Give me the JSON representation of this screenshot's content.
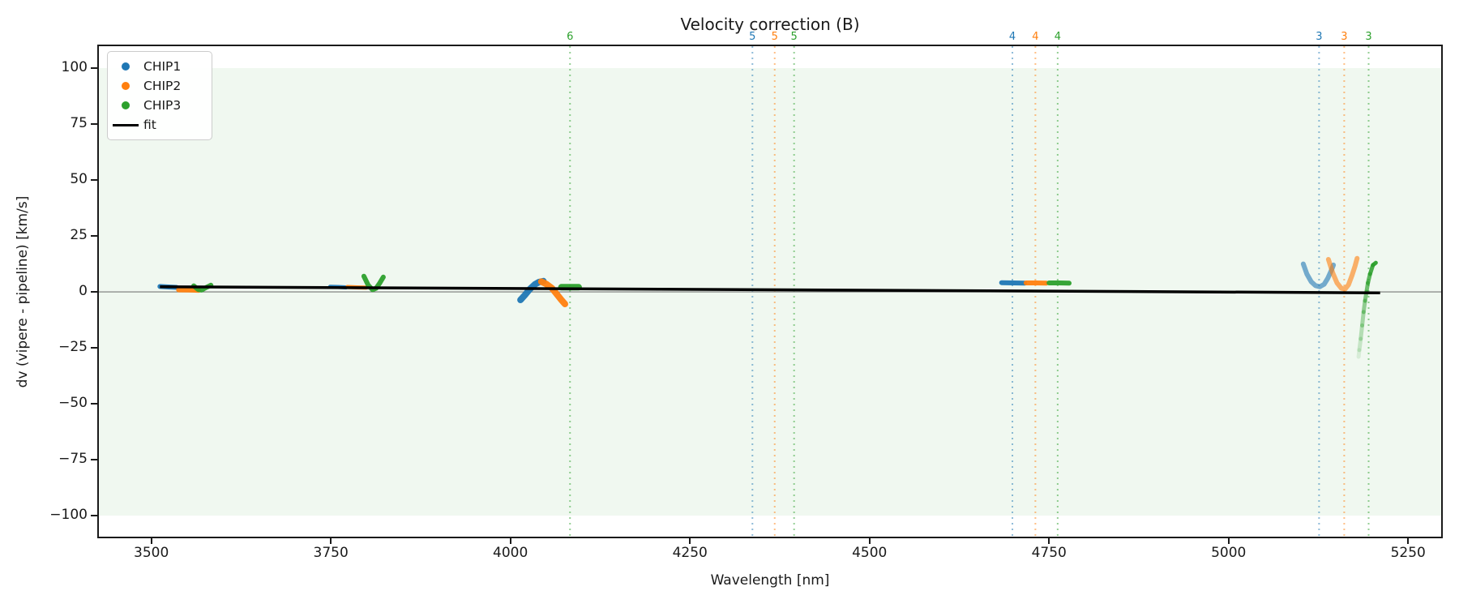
{
  "title": "Velocity correction (B)",
  "colors": {
    "chip1": "#1f77b4",
    "chip2": "#ff7f0e",
    "chip3": "#2ca02c",
    "fit": "#000000",
    "band": "rgba(44,160,44,0.07)",
    "zero_line": "#777777",
    "spine": "#1a1a1a"
  },
  "legend": {
    "items": [
      {
        "label": "CHIP1",
        "marker": "dot",
        "color": "#1f77b4"
      },
      {
        "label": "CHIP2",
        "marker": "dot",
        "color": "#ff7f0e"
      },
      {
        "label": "CHIP3",
        "marker": "dot",
        "color": "#2ca02c"
      },
      {
        "label": "fit",
        "marker": "line",
        "color": "#000000"
      }
    ]
  },
  "chart_data": {
    "type": "line",
    "title": "Velocity correction (B)",
    "xlabel": "Wavelength [nm]",
    "ylabel": "dv (vipere - pipeline) [km/s]",
    "xlim": [
      3427,
      5296
    ],
    "ylim": [
      -109.4,
      109.8
    ],
    "xticks": [
      {
        "v": 3500,
        "label": "3500"
      },
      {
        "v": 3750,
        "label": "3750"
      },
      {
        "v": 4000,
        "label": "4000"
      },
      {
        "v": 4250,
        "label": "4250"
      },
      {
        "v": 4500,
        "label": "4500"
      },
      {
        "v": 4750,
        "label": "4750"
      },
      {
        "v": 5000,
        "label": "5000"
      },
      {
        "v": 5250,
        "label": "5250"
      }
    ],
    "yticks": [
      {
        "v": 100,
        "label": "100"
      },
      {
        "v": 75,
        "label": "75"
      },
      {
        "v": 50,
        "label": "50"
      },
      {
        "v": 25,
        "label": "25"
      },
      {
        "v": 0,
        "label": "0"
      },
      {
        "v": -25,
        "label": "−25"
      },
      {
        "v": -50,
        "label": "−50"
      },
      {
        "v": -75,
        "label": "−75"
      },
      {
        "v": -100,
        "label": "−100"
      }
    ],
    "grid": false,
    "legend_position": "upper left",
    "band": {
      "ymin": -100,
      "ymax": 100,
      "color": "rgba(44,160,44,0.07)"
    },
    "zero_line": {
      "y": 0,
      "color": "#777777",
      "lw": 1.2
    },
    "order_marks": [
      {
        "text": "6",
        "wavelength": 4083,
        "color": "#2ca02c"
      },
      {
        "text": "5",
        "wavelength": 4337,
        "color": "#1f77b4"
      },
      {
        "text": "5",
        "wavelength": 4368,
        "color": "#ff7f0e"
      },
      {
        "text": "5",
        "wavelength": 4395,
        "color": "#2ca02c"
      },
      {
        "text": "4",
        "wavelength": 4699,
        "color": "#1f77b4"
      },
      {
        "text": "4",
        "wavelength": 4731,
        "color": "#ff7f0e"
      },
      {
        "text": "4",
        "wavelength": 4762,
        "color": "#2ca02c"
      },
      {
        "text": "3",
        "wavelength": 5126,
        "color": "#1f77b4"
      },
      {
        "text": "3",
        "wavelength": 5161,
        "color": "#ff7f0e"
      },
      {
        "text": "3",
        "wavelength": 5195,
        "color": "#2ca02c"
      }
    ],
    "series": [
      {
        "name": "CHIP1",
        "color": "#1f77b4",
        "segments": [
          {
            "lw": 6,
            "alpha": 0.95,
            "points": [
              [
                3512,
                2.4
              ],
              [
                3524,
                2.2
              ],
              [
                3535,
                2.0
              ]
            ]
          },
          {
            "lw": 5,
            "alpha": 0.95,
            "points": [
              [
                3749,
                2.3
              ],
              [
                3760,
                2.2
              ],
              [
                3771,
                2.0
              ]
            ]
          },
          {
            "lw": 8,
            "alpha": 0.95,
            "points": [
              [
                4014,
                -3.6
              ],
              [
                4020,
                -1.5
              ],
              [
                4027,
                1.2
              ],
              [
                4034,
                3.3
              ],
              [
                4040,
                4.4
              ],
              [
                4046,
                4.8
              ]
            ]
          },
          {
            "lw": 6,
            "alpha": 0.95,
            "points": [
              [
                4684,
                4.1
              ],
              [
                4700,
                4.0
              ],
              [
                4716,
                3.9
              ]
            ]
          },
          {
            "lw": 6,
            "alpha": 0.6,
            "points": [
              [
                5104,
                12.5
              ],
              [
                5109,
                8.0
              ],
              [
                5115,
                4.6
              ],
              [
                5121,
                2.8
              ],
              [
                5127,
                2.3
              ],
              [
                5133,
                3.4
              ],
              [
                5138,
                6.0
              ],
              [
                5143,
                9.5
              ],
              [
                5146,
                12.0
              ]
            ]
          }
        ]
      },
      {
        "name": "CHIP2",
        "color": "#ff7f0e",
        "segments": [
          {
            "lw": 6,
            "alpha": 0.95,
            "points": [
              [
                3538,
                0.9
              ],
              [
                3552,
                0.8
              ],
              [
                3566,
                0.7
              ]
            ]
          },
          {
            "lw": 5,
            "alpha": 0.95,
            "points": [
              [
                3773,
                2.2
              ],
              [
                3786,
                2.0
              ],
              [
                3799,
                1.9
              ]
            ]
          },
          {
            "lw": 8,
            "alpha": 0.95,
            "points": [
              [
                4043,
                4.6
              ],
              [
                4050,
                3.5
              ],
              [
                4058,
                1.6
              ],
              [
                4065,
                -1.2
              ],
              [
                4071,
                -3.6
              ],
              [
                4076,
                -5.4
              ]
            ]
          },
          {
            "lw": 6,
            "alpha": 0.95,
            "points": [
              [
                4718,
                4.0
              ],
              [
                4732,
                4.0
              ],
              [
                4746,
                3.9
              ]
            ]
          },
          {
            "lw": 6,
            "alpha": 0.6,
            "points": [
              [
                5139,
                14.5
              ],
              [
                5145,
                8.5
              ],
              [
                5151,
                4.0
              ],
              [
                5157,
                1.6
              ],
              [
                5162,
                1.2
              ],
              [
                5167,
                3.2
              ],
              [
                5172,
                7.5
              ],
              [
                5176,
                11.5
              ],
              [
                5179,
                15.0
              ]
            ]
          }
        ]
      },
      {
        "name": "CHIP3",
        "color": "#2ca02c",
        "segments": [
          {
            "lw": 6,
            "alpha": 0.95,
            "points": [
              [
                3559,
                2.7
              ],
              [
                3565,
                1.1
              ],
              [
                3570,
                0.8
              ],
              [
                3576,
                1.9
              ],
              [
                3583,
                3.0
              ]
            ]
          },
          {
            "lw": 6,
            "alpha": 0.95,
            "points": [
              [
                3796,
                7.0
              ],
              [
                3802,
                3.0
              ],
              [
                3808,
                1.0
              ],
              [
                3813,
                1.6
              ],
              [
                3818,
                3.9
              ],
              [
                3823,
                6.6
              ]
            ]
          },
          {
            "lw": 8,
            "alpha": 0.95,
            "points": [
              [
                4071,
                2.1
              ],
              [
                4083,
                2.1
              ],
              [
                4095,
                2.1
              ]
            ]
          },
          {
            "lw": 6,
            "alpha": 0.95,
            "points": [
              [
                4750,
                4.0
              ],
              [
                4764,
                4.0
              ],
              [
                4778,
                3.9
              ]
            ]
          },
          {
            "lw": 5,
            "alpha": 0.95,
            "fade_to": 0.12,
            "points": [
              [
                5205,
                13.0
              ],
              [
                5201,
                12.0
              ],
              [
                5197,
                8.0
              ],
              [
                5194,
                4.0
              ],
              [
                5192,
                0.0
              ],
              [
                5190,
                -4.0
              ],
              [
                5188,
                -9.0
              ],
              [
                5186,
                -15.0
              ],
              [
                5184,
                -21.0
              ],
              [
                5182,
                -26.0
              ],
              [
                5181,
                -29.0
              ]
            ]
          }
        ]
      }
    ],
    "fit": {
      "color": "#000000",
      "lw": 3.5,
      "points": [
        [
          3512,
          2.3
        ],
        [
          5211,
          -0.4
        ]
      ]
    }
  }
}
